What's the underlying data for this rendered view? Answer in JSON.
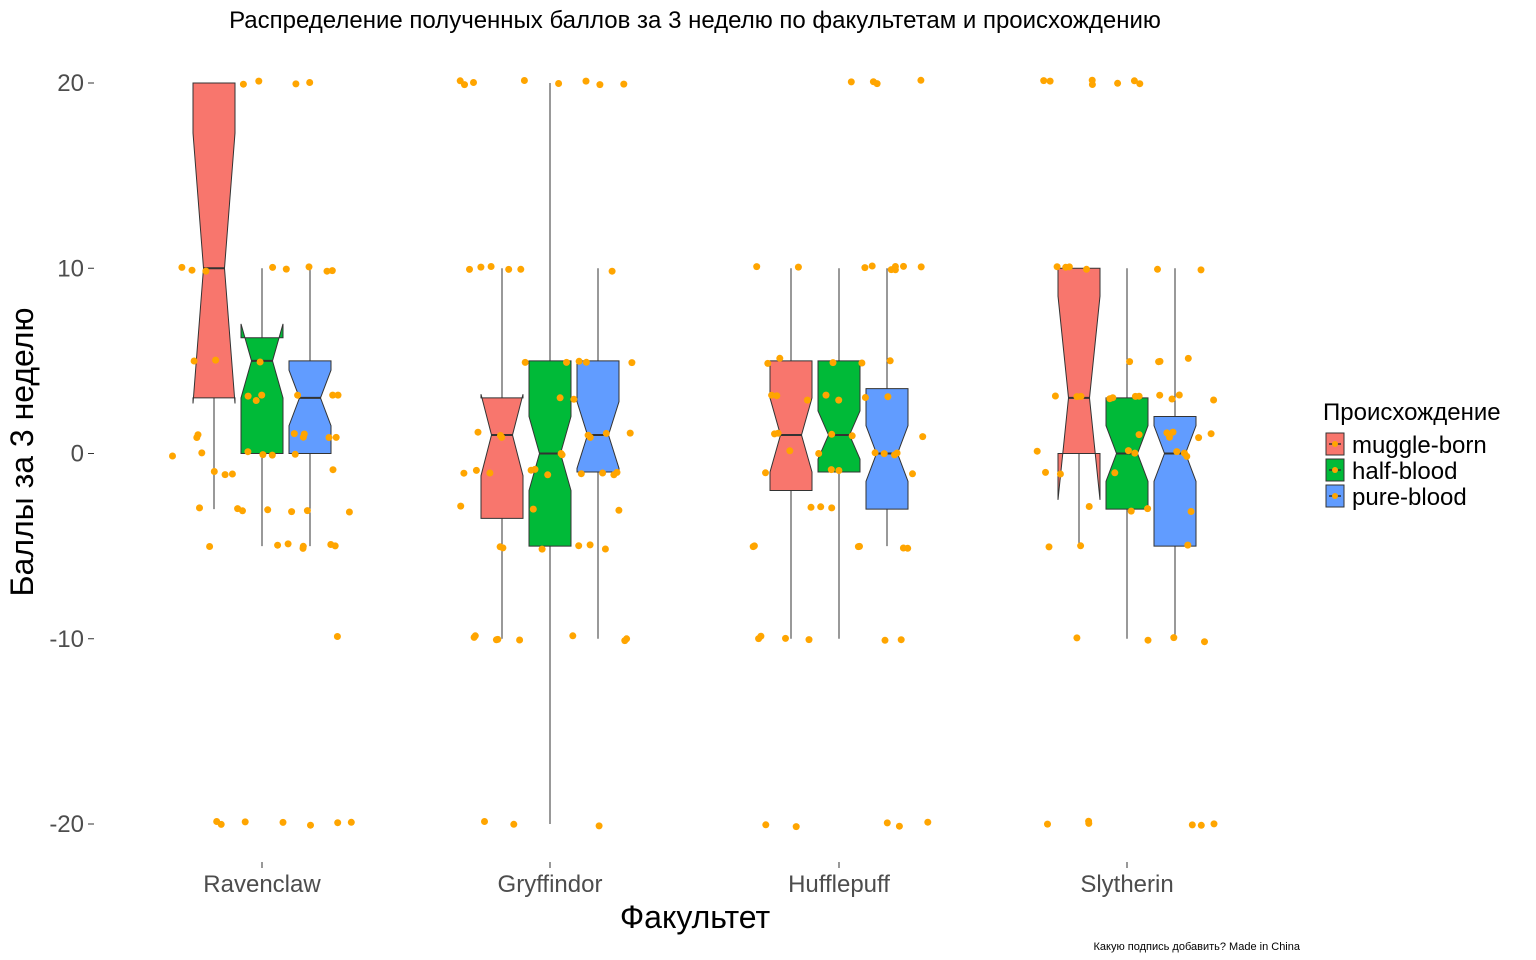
{
  "chart_data": {
    "type": "boxplot",
    "title": "Распределение  полученных баллов за 3 неделю по факультетам и происхождению",
    "xlabel": "Факультет",
    "ylabel": "Баллы за 3 неделю",
    "caption": "Какую подпись добавить? Made in China",
    "ylim": [
      -22.5,
      23
    ],
    "yticks": [
      20,
      10,
      0,
      -10,
      -20
    ],
    "ytick_labels": [
      "20",
      "10",
      "0",
      "-10",
      "-20"
    ],
    "grid": false,
    "notched": true,
    "points_color": "#FFA500",
    "categories": [
      "Ravenclaw",
      "Gryffindor",
      "Hufflepuff",
      "Slytherin"
    ],
    "legend": {
      "title": "Происхождение",
      "position": "right",
      "entries": [
        "muggle-born",
        "half-blood",
        "pure-blood"
      ]
    },
    "series": [
      {
        "name": "muggle-born",
        "color": "#F8766D",
        "boxes": [
          {
            "category": "Ravenclaw",
            "min": -3,
            "q1": 3,
            "median": 10,
            "q3": 20,
            "max": 20,
            "notch_low": 2.7,
            "notch_high": 17.3
          },
          {
            "category": "Gryffindor",
            "min": -10,
            "q1": -3.5,
            "median": 1,
            "q3": 3,
            "max": 10,
            "notch_low": -1.2,
            "notch_high": 3.2
          },
          {
            "category": "Hufflepuff",
            "min": -10,
            "q1": -2,
            "median": 1,
            "q3": 5,
            "max": 10,
            "notch_low": -1,
            "notch_high": 3
          },
          {
            "category": "Slytherin",
            "min": -5,
            "q1": 0,
            "median": 3,
            "q3": 10,
            "max": 10,
            "notch_low": -2.5,
            "notch_high": 8.5
          }
        ]
      },
      {
        "name": "half-blood",
        "color": "#00BA38",
        "boxes": [
          {
            "category": "Ravenclaw",
            "min": -5,
            "q1": 0,
            "median": 5,
            "q3": 6.25,
            "max": 10,
            "notch_low": 3,
            "notch_high": 7
          },
          {
            "category": "Gryffindor",
            "min": -20,
            "q1": -5,
            "median": 0,
            "q3": 5,
            "max": 20,
            "notch_low": -2,
            "notch_high": 2
          },
          {
            "category": "Hufflepuff",
            "min": -10,
            "q1": -1,
            "median": 1,
            "q3": 5,
            "max": 10,
            "notch_low": -0.3,
            "notch_high": 2.3
          },
          {
            "category": "Slytherin",
            "min": -10,
            "q1": -3,
            "median": 0,
            "q3": 3,
            "max": 10,
            "notch_low": -1.5,
            "notch_high": 1.5
          }
        ]
      },
      {
        "name": "pure-blood",
        "color": "#619CFF",
        "boxes": [
          {
            "category": "Ravenclaw",
            "min": -5,
            "q1": 0,
            "median": 3,
            "q3": 5,
            "max": 10,
            "notch_low": 1.5,
            "notch_high": 4.5
          },
          {
            "category": "Gryffindor",
            "min": -10,
            "q1": -1,
            "median": 1,
            "q3": 5,
            "max": 10,
            "notch_low": -0.8,
            "notch_high": 2.8
          },
          {
            "category": "Hufflepuff",
            "min": -5,
            "q1": -3,
            "median": 0,
            "q3": 3.5,
            "max": 10,
            "notch_low": -1.5,
            "notch_high": 1.5
          },
          {
            "category": "Slytherin",
            "min": -10,
            "q1": -5,
            "median": 0,
            "q3": 2,
            "max": 10,
            "notch_low": -1.5,
            "notch_high": 1.5
          }
        ]
      }
    ]
  }
}
